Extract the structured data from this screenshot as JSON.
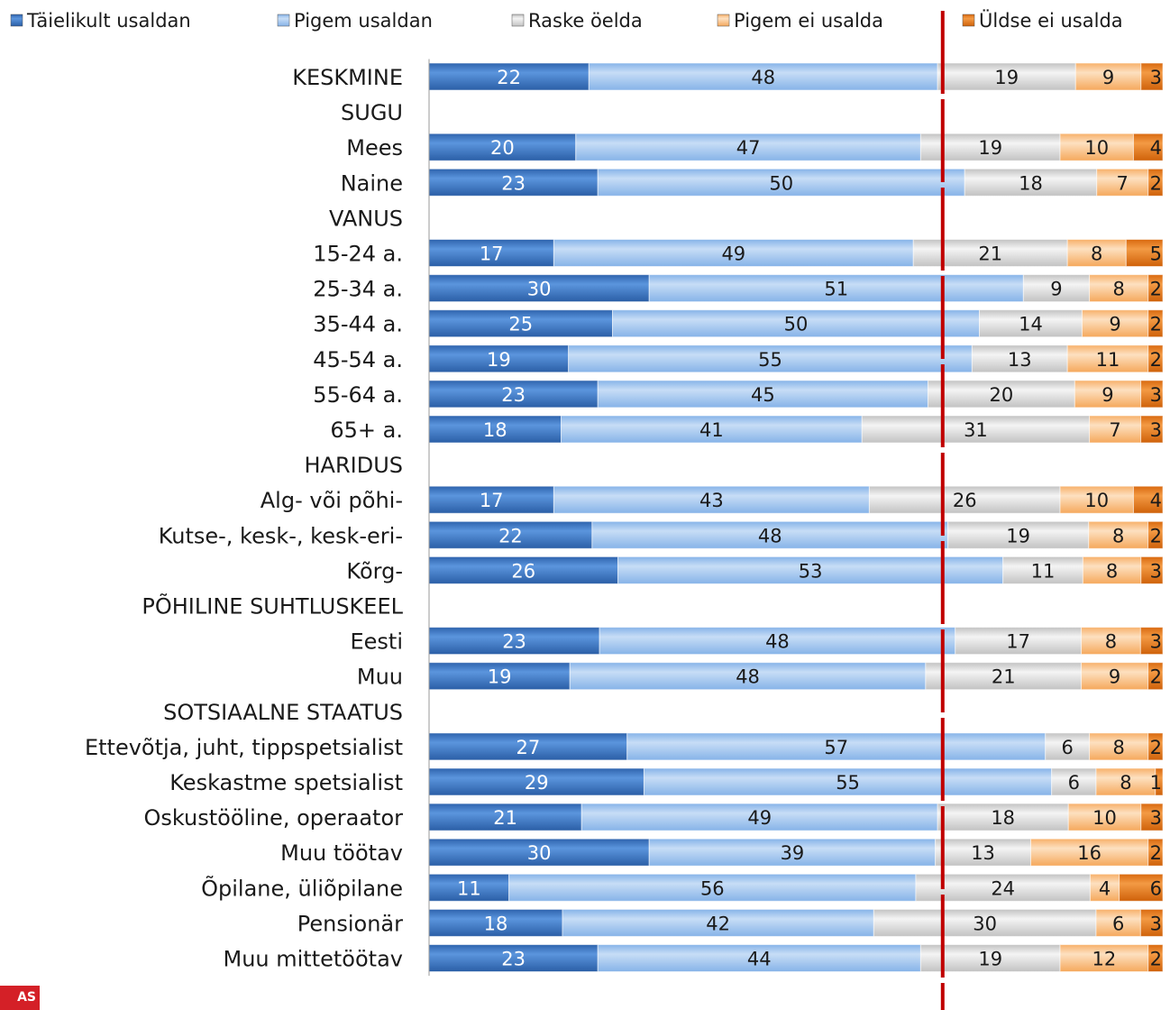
{
  "chart_data": {
    "type": "bar",
    "orientation": "horizontal",
    "stacked": true,
    "percent_scale": [
      0,
      100
    ],
    "legend_position": "top",
    "reference_line": {
      "value": 70,
      "color": "#c00000",
      "style": "dashed"
    },
    "series": [
      {
        "name": "Täielikult usaldan",
        "color": "#3f79c6"
      },
      {
        "name": "Pigem usaldan",
        "color": "#9cc3ee"
      },
      {
        "name": "Raske öelda",
        "color": "#d8d8d8"
      },
      {
        "name": "Pigem ei usalda",
        "color": "#fbc48e"
      },
      {
        "name": "Üldse ei usalda",
        "color": "#e87722"
      }
    ],
    "rows": [
      {
        "label": "KESKMINE",
        "values": [
          22,
          48,
          19,
          9,
          3
        ]
      },
      {
        "label": "SUGU",
        "values": null
      },
      {
        "label": "Mees",
        "values": [
          20,
          47,
          19,
          10,
          4
        ]
      },
      {
        "label": "Naine",
        "values": [
          23,
          50,
          18,
          7,
          2
        ]
      },
      {
        "label": "VANUS",
        "values": null
      },
      {
        "label": "15-24 a.",
        "values": [
          17,
          49,
          21,
          8,
          5
        ]
      },
      {
        "label": "25-34 a.",
        "values": [
          30,
          51,
          9,
          8,
          2
        ]
      },
      {
        "label": "35-44 a.",
        "values": [
          25,
          50,
          14,
          9,
          2
        ]
      },
      {
        "label": "45-54 a.",
        "values": [
          19,
          55,
          13,
          11,
          2
        ]
      },
      {
        "label": "55-64 a.",
        "values": [
          23,
          45,
          20,
          9,
          3
        ]
      },
      {
        "label": "65+ a.",
        "values": [
          18,
          41,
          31,
          7,
          3
        ]
      },
      {
        "label": "HARIDUS",
        "values": null
      },
      {
        "label": "Alg- või põhi-",
        "values": [
          17,
          43,
          26,
          10,
          4
        ]
      },
      {
        "label": "Kutse-, kesk-, kesk-eri-",
        "values": [
          22,
          48,
          19,
          8,
          2
        ]
      },
      {
        "label": "Kõrg-",
        "values": [
          26,
          53,
          11,
          8,
          3
        ]
      },
      {
        "label": "PÕHILINE SUHTLUSKEEL",
        "values": null
      },
      {
        "label": "Eesti",
        "values": [
          23,
          48,
          17,
          8,
          3
        ]
      },
      {
        "label": "Muu",
        "values": [
          19,
          48,
          21,
          9,
          2
        ]
      },
      {
        "label": "SOTSIAALNE STAATUS",
        "values": null
      },
      {
        "label": "Ettevõtja, juht, tippspetsialist",
        "values": [
          27,
          57,
          6,
          8,
          2
        ]
      },
      {
        "label": "Keskastme spetsialist",
        "values": [
          29,
          55,
          6,
          8,
          1
        ]
      },
      {
        "label": "Oskustööline, operaator",
        "values": [
          21,
          49,
          18,
          10,
          3
        ]
      },
      {
        "label": "Muu töötav",
        "values": [
          30,
          39,
          13,
          16,
          2
        ]
      },
      {
        "label": "Õpilane, üliõpilane",
        "values": [
          11,
          56,
          24,
          4,
          6
        ]
      },
      {
        "label": "Pensionär",
        "values": [
          18,
          42,
          30,
          6,
          3
        ]
      },
      {
        "label": "Muu mittetöötav",
        "values": [
          23,
          44,
          19,
          12,
          2
        ]
      }
    ]
  },
  "logo": {
    "text": "AS"
  }
}
